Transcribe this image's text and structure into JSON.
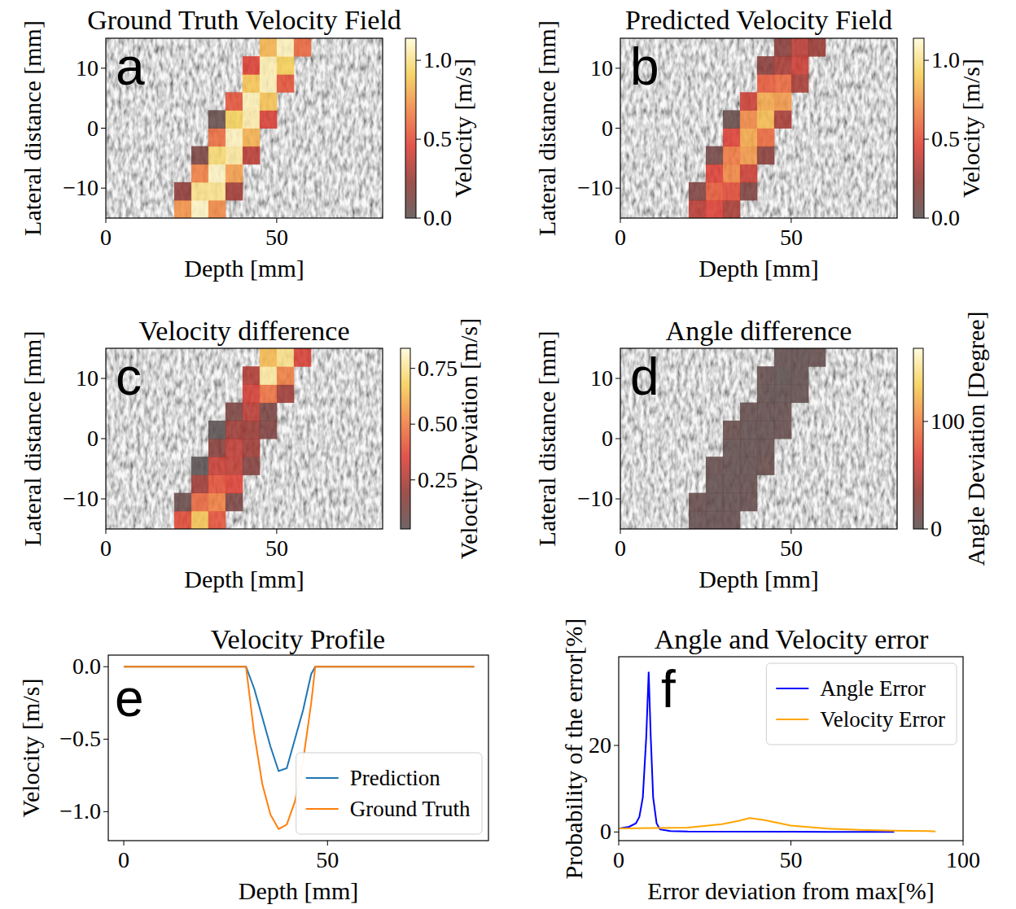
{
  "chart_data": [
    {
      "type": "heatmap",
      "panel_label": "a",
      "title": "Ground Truth Velocity Field",
      "x_label": "Depth [mm]",
      "y_label": "Lateral distance [mm]",
      "xlim": [
        0,
        81
      ],
      "ylim": [
        -15,
        15
      ],
      "xticks": [
        0,
        50
      ],
      "yticks": [
        {
          "value": -10,
          "label": "−10"
        },
        0,
        10
      ],
      "x_bins": [
        0,
        5,
        10,
        15,
        20,
        25,
        30,
        35,
        40,
        45,
        50,
        55,
        60,
        65,
        70,
        75,
        80
      ],
      "y_bins": [
        -15,
        -12,
        -9,
        -6,
        -3,
        0,
        3,
        6,
        9,
        12,
        15
      ],
      "cells": [
        [
          null,
          null,
          null,
          null,
          0.73,
          1.1,
          0.7,
          null,
          null,
          null,
          null,
          null,
          null,
          null,
          null,
          null
        ],
        [
          null,
          null,
          null,
          null,
          0.22,
          1.0,
          1.01,
          0.27,
          null,
          null,
          null,
          null,
          null,
          null,
          null,
          null
        ],
        [
          null,
          null,
          null,
          null,
          null,
          0.67,
          1.1,
          0.76,
          null,
          null,
          null,
          null,
          null,
          null,
          null,
          null
        ],
        [
          null,
          null,
          null,
          null,
          null,
          0.13,
          0.96,
          1.04,
          0.35,
          null,
          null,
          null,
          null,
          null,
          null,
          null
        ],
        [
          null,
          null,
          null,
          null,
          null,
          null,
          0.61,
          1.09,
          0.82,
          null,
          null,
          null,
          null,
          null,
          null,
          null
        ],
        [
          null,
          null,
          null,
          null,
          null,
          null,
          0.05,
          0.92,
          1.06,
          0.44,
          null,
          null,
          null,
          null,
          null,
          null
        ],
        [
          null,
          null,
          null,
          null,
          null,
          null,
          null,
          0.53,
          1.08,
          0.87,
          null,
          null,
          null,
          null,
          null,
          null
        ],
        [
          null,
          null,
          null,
          null,
          null,
          null,
          null,
          null,
          0.88,
          1.08,
          0.52,
          null,
          null,
          null,
          null,
          null
        ],
        [
          null,
          null,
          null,
          null,
          null,
          null,
          null,
          null,
          0.46,
          1.07,
          0.91,
          null,
          null,
          null,
          null,
          null
        ],
        [
          null,
          null,
          null,
          null,
          null,
          null,
          null,
          null,
          null,
          0.83,
          1.09,
          0.59,
          null,
          null,
          null,
          null
        ]
      ],
      "color_label": "Velocity [m/s]",
      "clim": [
        0,
        1.14
      ],
      "cticks": [
        {
          "value": 0,
          "label": "0.0"
        },
        0.5,
        {
          "value": 1,
          "label": "1.0"
        }
      ]
    },
    {
      "type": "heatmap",
      "panel_label": "b",
      "title": "Predicted Velocity Field",
      "x_label": "Depth [mm]",
      "y_label": "Lateral distance [mm]",
      "xlim": [
        0,
        81
      ],
      "ylim": [
        -15,
        15
      ],
      "xticks": [
        0,
        50
      ],
      "yticks": [
        {
          "value": -10,
          "label": "−10"
        },
        0,
        10
      ],
      "x_bins": [
        0,
        5,
        10,
        15,
        20,
        25,
        30,
        35,
        40,
        45,
        50,
        55,
        60,
        65,
        70,
        75,
        80
      ],
      "y_bins": [
        -15,
        -12,
        -9,
        -6,
        -3,
        0,
        3,
        6,
        9,
        12,
        15
      ],
      "cells": [
        [
          null,
          null,
          null,
          null,
          0.35,
          0.45,
          0.3,
          null,
          null,
          null,
          null,
          null,
          null,
          null,
          null,
          null
        ],
        [
          null,
          null,
          null,
          null,
          0.15,
          0.55,
          0.5,
          0.15,
          null,
          null,
          null,
          null,
          null,
          null,
          null,
          null
        ],
        [
          null,
          null,
          null,
          null,
          null,
          0.45,
          0.7,
          0.4,
          null,
          null,
          null,
          null,
          null,
          null,
          null,
          null
        ],
        [
          null,
          null,
          null,
          null,
          null,
          0.1,
          0.65,
          0.75,
          0.2,
          null,
          null,
          null,
          null,
          null,
          null,
          null
        ],
        [
          null,
          null,
          null,
          null,
          null,
          null,
          0.45,
          0.8,
          0.6,
          null,
          null,
          null,
          null,
          null,
          null,
          null
        ],
        [
          null,
          null,
          null,
          null,
          null,
          null,
          0.05,
          0.7,
          0.85,
          0.3,
          null,
          null,
          null,
          null,
          null,
          null
        ],
        [
          null,
          null,
          null,
          null,
          null,
          null,
          null,
          0.4,
          0.8,
          0.75,
          null,
          null,
          null,
          null,
          null,
          null
        ],
        [
          null,
          null,
          null,
          null,
          null,
          null,
          null,
          null,
          0.55,
          0.6,
          0.3,
          null,
          null,
          null,
          null,
          null
        ],
        [
          null,
          null,
          null,
          null,
          null,
          null,
          null,
          null,
          0.2,
          0.3,
          0.4,
          null,
          null,
          null,
          null,
          null
        ],
        [
          null,
          null,
          null,
          null,
          null,
          null,
          null,
          null,
          null,
          0.2,
          0.35,
          0.25,
          null,
          null,
          null,
          null
        ]
      ],
      "color_label": "Velocity [m/s]",
      "clim": [
        0,
        1.14
      ],
      "cticks": [
        {
          "value": 0,
          "label": "0.0"
        },
        0.5,
        {
          "value": 1,
          "label": "1.0"
        }
      ]
    },
    {
      "type": "heatmap",
      "panel_label": "c",
      "title": "Velocity difference",
      "x_label": "Depth [mm]",
      "y_label": "Lateral distance [mm]",
      "xlim": [
        0,
        81
      ],
      "ylim": [
        -15,
        15
      ],
      "xticks": [
        0,
        50
      ],
      "yticks": [
        {
          "value": -10,
          "label": "−10"
        },
        0,
        10
      ],
      "x_bins": [
        0,
        5,
        10,
        15,
        20,
        25,
        30,
        35,
        40,
        45,
        50,
        55,
        60,
        65,
        70,
        75,
        80
      ],
      "y_bins": [
        -15,
        -12,
        -9,
        -6,
        -3,
        0,
        3,
        6,
        9,
        12,
        15
      ],
      "cells": [
        [
          null,
          null,
          null,
          null,
          0.38,
          0.65,
          0.4,
          null,
          null,
          null,
          null,
          null,
          null,
          null,
          null,
          null
        ],
        [
          null,
          null,
          null,
          null,
          0.07,
          0.45,
          0.51,
          0.12,
          null,
          null,
          null,
          null,
          null,
          null,
          null,
          null
        ],
        [
          null,
          null,
          null,
          null,
          null,
          0.22,
          0.4,
          0.36,
          null,
          null,
          null,
          null,
          null,
          null,
          null,
          null
        ],
        [
          null,
          null,
          null,
          null,
          null,
          0.03,
          0.31,
          0.29,
          0.15,
          null,
          null,
          null,
          null,
          null,
          null,
          null
        ],
        [
          null,
          null,
          null,
          null,
          null,
          null,
          0.16,
          0.29,
          0.22,
          null,
          null,
          null,
          null,
          null,
          null,
          null
        ],
        [
          null,
          null,
          null,
          null,
          null,
          null,
          0.03,
          0.22,
          0.21,
          0.14,
          null,
          null,
          null,
          null,
          null,
          null
        ],
        [
          null,
          null,
          null,
          null,
          null,
          null,
          null,
          0.13,
          0.28,
          0.12,
          null,
          null,
          null,
          null,
          null,
          null
        ],
        [
          null,
          null,
          null,
          null,
          null,
          null,
          null,
          null,
          0.33,
          0.48,
          0.22,
          null,
          null,
          null,
          null,
          null
        ],
        [
          null,
          null,
          null,
          null,
          null,
          null,
          null,
          null,
          0.26,
          0.77,
          0.51,
          null,
          null,
          null,
          null,
          null
        ],
        [
          null,
          null,
          null,
          null,
          null,
          null,
          null,
          null,
          null,
          0.63,
          0.74,
          0.34,
          null,
          null,
          null,
          null
        ]
      ],
      "color_label": "Velocity Deviation [m/s]",
      "clim": [
        0.03,
        0.84
      ],
      "cticks": [
        0.25,
        {
          "value": 0.5,
          "label": "0.50"
        },
        0.75
      ]
    },
    {
      "type": "heatmap",
      "panel_label": "d",
      "title": "Angle difference",
      "x_label": "Depth [mm]",
      "y_label": "Lateral distance [mm]",
      "xlim": [
        0,
        81
      ],
      "ylim": [
        -15,
        15
      ],
      "xticks": [
        0,
        50
      ],
      "yticks": [
        {
          "value": -10,
          "label": "−10"
        },
        0,
        10
      ],
      "x_bins": [
        0,
        5,
        10,
        15,
        20,
        25,
        30,
        35,
        40,
        45,
        50,
        55,
        60,
        65,
        70,
        75,
        80
      ],
      "y_bins": [
        -15,
        -12,
        -9,
        -6,
        -3,
        0,
        3,
        6,
        9,
        12,
        15
      ],
      "cells": [
        [
          null,
          null,
          null,
          null,
          6,
          5,
          7,
          null,
          null,
          null,
          null,
          null,
          null,
          null,
          null,
          null
        ],
        [
          null,
          null,
          null,
          null,
          8,
          5,
          4,
          7,
          null,
          null,
          null,
          null,
          null,
          null,
          null,
          null
        ],
        [
          null,
          null,
          null,
          null,
          null,
          5,
          4,
          6,
          null,
          null,
          null,
          null,
          null,
          null,
          null,
          null
        ],
        [
          null,
          null,
          null,
          null,
          null,
          7,
          4,
          5,
          8,
          null,
          null,
          null,
          null,
          null,
          null,
          null
        ],
        [
          null,
          null,
          null,
          null,
          null,
          null,
          5,
          4,
          6,
          null,
          null,
          null,
          null,
          null,
          null,
          null
        ],
        [
          null,
          null,
          null,
          null,
          null,
          null,
          8,
          5,
          4,
          7,
          null,
          null,
          null,
          null,
          null,
          null
        ],
        [
          null,
          null,
          null,
          null,
          null,
          null,
          null,
          6,
          5,
          6,
          null,
          null,
          null,
          null,
          null,
          null
        ],
        [
          null,
          null,
          null,
          null,
          null,
          null,
          null,
          null,
          4,
          3,
          5,
          null,
          null,
          null,
          null,
          null
        ],
        [
          null,
          null,
          null,
          null,
          null,
          null,
          null,
          null,
          6,
          2,
          4,
          null,
          null,
          null,
          null,
          null
        ],
        [
          null,
          null,
          null,
          null,
          null,
          null,
          null,
          null,
          null,
          5,
          3,
          6,
          null,
          null,
          null,
          null
        ]
      ],
      "color_label": "Angle Deviation [Degree]",
      "clim": [
        0,
        168
      ],
      "cticks": [
        0,
        100
      ]
    },
    {
      "type": "line",
      "panel_label": "e",
      "title": "Velocity Profile",
      "x_label": "Depth [mm]",
      "y_label": "Velocity [m/s]",
      "xlim": [
        -3.8,
        89.5
      ],
      "ylim": [
        -1.2,
        0.08
      ],
      "xticks": [
        0,
        50
      ],
      "yticks": [
        {
          "value": -1,
          "label": "−1.0"
        },
        {
          "value": -0.5,
          "label": "−0.5"
        },
        {
          "value": 0,
          "label": "0.0"
        }
      ],
      "legend": "lower right",
      "x": [
        0,
        10,
        20,
        28,
        30,
        32,
        34,
        36,
        38,
        40,
        42,
        44,
        46,
        47,
        50,
        60,
        70,
        80,
        86
      ],
      "series": [
        {
          "name": "Prediction",
          "color": "#1f77b4",
          "values": [
            0,
            0,
            0,
            0,
            0,
            -0.15,
            -0.35,
            -0.55,
            -0.72,
            -0.7,
            -0.5,
            -0.3,
            -0.05,
            0,
            0,
            0,
            0,
            0,
            0
          ]
        },
        {
          "name": "Ground Truth",
          "color": "#ff7f0e",
          "values": [
            0,
            0,
            0,
            0,
            0,
            -0.46,
            -0.81,
            -1.02,
            -1.12,
            -1.09,
            -0.93,
            -0.65,
            -0.25,
            0,
            0,
            0,
            0,
            0,
            0
          ]
        }
      ]
    },
    {
      "type": "line",
      "panel_label": "f",
      "title": "Angle and Velocity error",
      "x_label": "Error deviation from max[%]",
      "y_label": "Probability of the error[%]",
      "xlim": [
        0,
        100
      ],
      "ylim": [
        -2,
        40.5
      ],
      "xticks": [
        0,
        50,
        100
      ],
      "yticks": [
        0,
        20
      ],
      "legend": "upper right",
      "series": [
        {
          "name": "Angle Error",
          "color": "#0000ff",
          "x": [
            0,
            3,
            5,
            6,
            7,
            8,
            8.7,
            9.3,
            10,
            11,
            12,
            15,
            20,
            50,
            80
          ],
          "values": [
            0.8,
            1.2,
            2,
            3.5,
            8,
            22,
            37,
            22,
            8,
            2,
            0.6,
            0.2,
            0.1,
            0.05,
            0
          ]
        },
        {
          "name": "Velocity Error",
          "color": "#ffa500",
          "x": [
            0,
            10,
            20,
            30,
            35,
            38,
            42,
            50,
            60,
            70,
            80,
            90,
            92
          ],
          "values": [
            0.8,
            0.9,
            1,
            1.8,
            2.6,
            3.2,
            2.8,
            1.5,
            0.8,
            0.5,
            0.3,
            0.2,
            0.1
          ]
        }
      ]
    }
  ]
}
